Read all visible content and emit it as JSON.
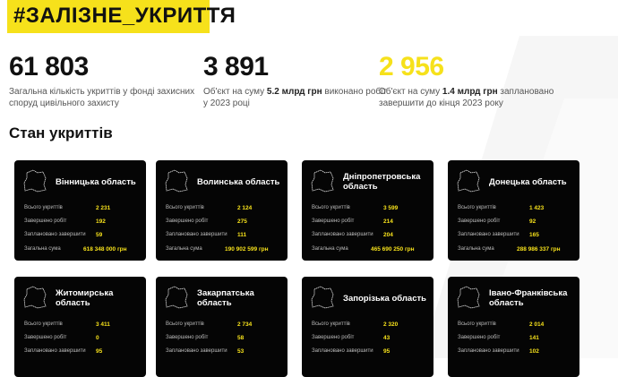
{
  "title": "#ЗАЛІЗНЕ_УКРИТТЯ",
  "stats": [
    {
      "value": "61 803",
      "desc_pre": "Загальна кількість укриттів у фонді захисних споруд цивільного захисту",
      "bold": "",
      "desc_post": "",
      "color": "#111111"
    },
    {
      "value": "3 891",
      "desc_pre": "Об'єкт на суму ",
      "bold": "5.2 млрд грн",
      "desc_post": " виконано робіт у 2023 році",
      "color": "#111111"
    },
    {
      "value": "2 956",
      "desc_pre": "Об'єкт на суму ",
      "bold": "1.4 млрд грн",
      "desc_post": " заплановано завершити до кінця 2023 року",
      "color": "#f6e11b"
    }
  ],
  "section_title": "Стан укриттів",
  "row_labels": [
    "Всього укриттів",
    "Завершено робіт",
    "Заплановано завершити",
    "Загальна сума"
  ],
  "accent": "#f6e11b",
  "cards": [
    {
      "name": "Вінницька область",
      "values": [
        "2 231",
        "192",
        "59",
        "618 348 000 грн"
      ]
    },
    {
      "name": "Волинська область",
      "values": [
        "2 124",
        "275",
        "111",
        "190 902 599 грн"
      ]
    },
    {
      "name": "Дніпропетровська область",
      "values": [
        "3 599",
        "214",
        "204",
        "465 690 250 грн"
      ]
    },
    {
      "name": "Донецька область",
      "values": [
        "1 423",
        "92",
        "165",
        "288 986 337 грн"
      ]
    },
    {
      "name": "Житомирська область",
      "values": [
        "3 411",
        "0",
        "95"
      ]
    },
    {
      "name": "Закарпатська область",
      "values": [
        "2 734",
        "58",
        "53"
      ]
    },
    {
      "name": "Запорізька область",
      "values": [
        "2 320",
        "43",
        "95"
      ]
    },
    {
      "name": "Івано-Франківська область",
      "values": [
        "2 014",
        "141",
        "102"
      ]
    }
  ]
}
